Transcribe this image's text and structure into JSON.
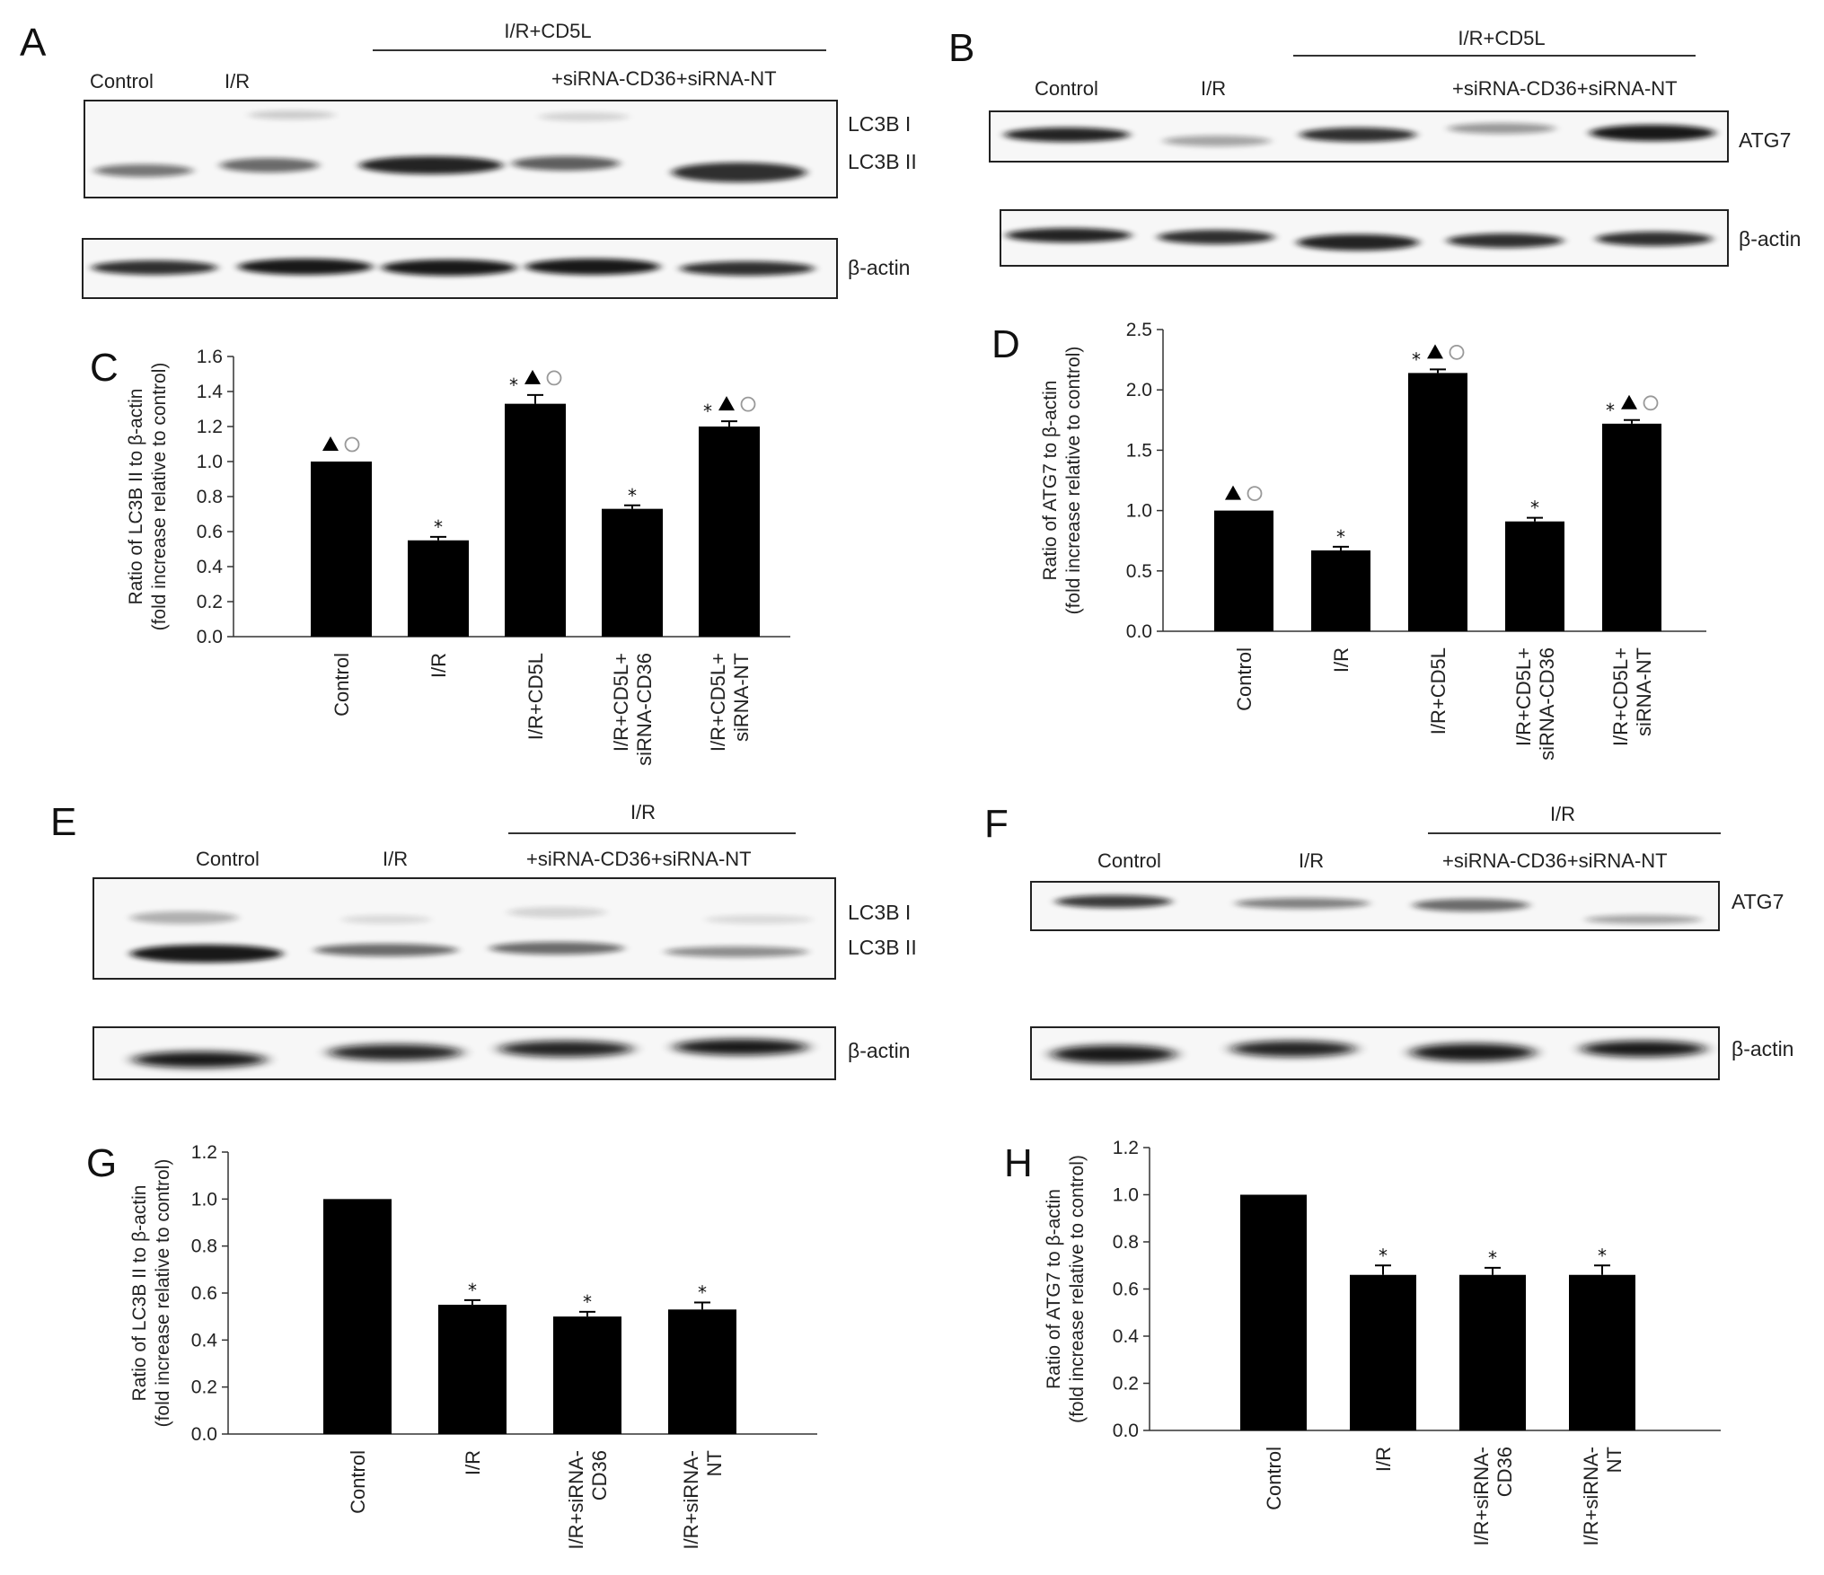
{
  "panel_letters": [
    "A",
    "B",
    "C",
    "D",
    "E",
    "F",
    "G",
    "H"
  ],
  "blots": {
    "A": {
      "bracket": "I/R+CD5L",
      "lanes": [
        "Control",
        "I/R",
        "+siRNA-CD36+siRNA-NT"
      ],
      "bands": [
        "LC3B I",
        "LC3B II"
      ],
      "loading": "β-actin"
    },
    "B": {
      "bracket": "I/R+CD5L",
      "lanes": [
        "Control",
        "I/R",
        "+siRNA-CD36+siRNA-NT"
      ],
      "bands": [
        "ATG7"
      ],
      "loading": "β-actin"
    },
    "E": {
      "bracket": "I/R",
      "lanes": [
        "Control",
        "I/R",
        "+siRNA-CD36+siRNA-NT"
      ],
      "bands": [
        "LC3B I",
        "LC3B II"
      ],
      "loading": "β-actin"
    },
    "F": {
      "bracket": "I/R",
      "lanes": [
        "Control",
        "I/R",
        "+siRNA-CD36+siRNA-NT"
      ],
      "bands": [
        "ATG7"
      ],
      "loading": "β-actin"
    }
  },
  "chart_data": [
    {
      "panel": "C",
      "type": "bar",
      "categories": [
        [
          "Control"
        ],
        [
          "I/R"
        ],
        [
          "I/R+CD5L"
        ],
        [
          "I/R+CD5L+",
          "siRNA-CD36"
        ],
        [
          "I/R+CD5L+",
          "siRNA-NT"
        ]
      ],
      "values": [
        1.0,
        0.55,
        1.33,
        0.73,
        1.2
      ],
      "errors": [
        0.0,
        0.02,
        0.05,
        0.02,
        0.03
      ],
      "significance": [
        "▲○",
        "*",
        "*▲○",
        "*",
        "*▲○"
      ],
      "ylabel": [
        "Ratio of LC3B II to β-actin",
        "(fold increase relative to control)"
      ],
      "ylim": [
        0,
        1.6
      ],
      "yticks": [
        "0.0",
        "0.2",
        "0.4",
        "0.6",
        "0.8",
        "1.0",
        "1.2",
        "1.4",
        "1.6"
      ],
      "grid": false
    },
    {
      "panel": "D",
      "type": "bar",
      "categories": [
        [
          "Control"
        ],
        [
          "I/R"
        ],
        [
          "I/R+CD5L"
        ],
        [
          "I/R+CD5L+",
          "siRNA-CD36"
        ],
        [
          "I/R+CD5L+",
          "siRNA-NT"
        ]
      ],
      "values": [
        1.0,
        0.67,
        2.14,
        0.91,
        1.72
      ],
      "errors": [
        0.0,
        0.03,
        0.03,
        0.03,
        0.03
      ],
      "significance": [
        "▲○",
        "*",
        "*▲○",
        "*",
        "*▲○"
      ],
      "ylabel": [
        "Ratio of ATG7 to β-actin",
        "(fold increase relative to control)"
      ],
      "ylim": [
        0,
        2.5
      ],
      "yticks": [
        "0.0",
        "0.5",
        "1.0",
        "1.5",
        "2.0",
        "2.5"
      ],
      "grid": false
    },
    {
      "panel": "G",
      "type": "bar",
      "categories": [
        [
          "Control"
        ],
        [
          "I/R"
        ],
        [
          "I/R+siRNA-",
          "CD36"
        ],
        [
          "I/R+siRNA-",
          "NT"
        ]
      ],
      "values": [
        1.0,
        0.55,
        0.5,
        0.53
      ],
      "errors": [
        0.0,
        0.02,
        0.02,
        0.03
      ],
      "significance": [
        "",
        "*",
        "*",
        "*"
      ],
      "ylabel": [
        "Ratio of LC3B II to β-actin",
        "(fold increase relative to control)"
      ],
      "ylim": [
        0,
        1.2
      ],
      "yticks": [
        "0.0",
        "0.2",
        "0.4",
        "0.6",
        "0.8",
        "1.0",
        "1.2"
      ],
      "grid": false
    },
    {
      "panel": "H",
      "type": "bar",
      "categories": [
        [
          "Control"
        ],
        [
          "I/R"
        ],
        [
          "I/R+siRNA-",
          "CD36"
        ],
        [
          "I/R+siRNA-",
          "NT"
        ]
      ],
      "values": [
        1.0,
        0.66,
        0.66,
        0.66
      ],
      "errors": [
        0.0,
        0.04,
        0.03,
        0.04
      ],
      "significance": [
        "",
        "*",
        "*",
        "*"
      ],
      "ylabel": [
        "Ratio of ATG7 to β-actin",
        "(fold increase relative to control)"
      ],
      "ylim": [
        0,
        1.2
      ],
      "yticks": [
        "0.0",
        "0.2",
        "0.4",
        "0.6",
        "0.8",
        "1.0",
        "1.2"
      ],
      "grid": false
    }
  ]
}
